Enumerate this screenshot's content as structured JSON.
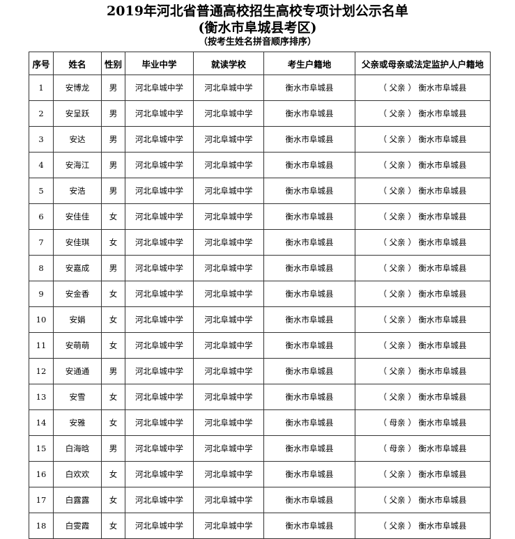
{
  "title": "2019年河北省普通高校招生高校专项计划公示名单",
  "subtitle": "(衡水市阜城县考区)",
  "note": "（按考生姓名拼音顺序排序）",
  "columns": [
    "序号",
    "姓名",
    "性别",
    "毕业中学",
    "就读学校",
    "考生户籍地",
    "父亲或母亲或法定监护人户籍地"
  ],
  "rows": [
    [
      "1",
      "安博龙",
      "男",
      "河北阜城中学",
      "河北阜城中学",
      "衡水市阜城县",
      "（ 父亲 ） 衡水市阜城县"
    ],
    [
      "2",
      "安呈跃",
      "男",
      "河北阜城中学",
      "河北阜城中学",
      "衡水市阜城县",
      "（ 父亲 ） 衡水市阜城县"
    ],
    [
      "3",
      "安达",
      "男",
      "河北阜城中学",
      "河北阜城中学",
      "衡水市阜城县",
      "（ 父亲 ） 衡水市阜城县"
    ],
    [
      "4",
      "安海江",
      "男",
      "河北阜城中学",
      "河北阜城中学",
      "衡水市阜城县",
      "（ 父亲 ） 衡水市阜城县"
    ],
    [
      "5",
      "安浩",
      "男",
      "河北阜城中学",
      "河北阜城中学",
      "衡水市阜城县",
      "（ 父亲 ） 衡水市阜城县"
    ],
    [
      "6",
      "安佳佳",
      "女",
      "河北阜城中学",
      "河北阜城中学",
      "衡水市阜城县",
      "（ 父亲 ） 衡水市阜城县"
    ],
    [
      "7",
      "安佳琪",
      "女",
      "河北阜城中学",
      "河北阜城中学",
      "衡水市阜城县",
      "（ 父亲 ） 衡水市阜城县"
    ],
    [
      "8",
      "安嘉成",
      "男",
      "河北阜城中学",
      "河北阜城中学",
      "衡水市阜城县",
      "（ 父亲 ） 衡水市阜城县"
    ],
    [
      "9",
      "安金香",
      "女",
      "河北阜城中学",
      "河北阜城中学",
      "衡水市阜城县",
      "（ 父亲 ） 衡水市阜城县"
    ],
    [
      "10",
      "安娟",
      "女",
      "河北阜城中学",
      "河北阜城中学",
      "衡水市阜城县",
      "（ 父亲 ） 衡水市阜城县"
    ],
    [
      "11",
      "安萌萌",
      "女",
      "河北阜城中学",
      "河北阜城中学",
      "衡水市阜城县",
      "（ 父亲 ） 衡水市阜城县"
    ],
    [
      "12",
      "安通通",
      "男",
      "河北阜城中学",
      "河北阜城中学",
      "衡水市阜城县",
      "（ 父亲 ） 衡水市阜城县"
    ],
    [
      "13",
      "安雪",
      "女",
      "河北阜城中学",
      "河北阜城中学",
      "衡水市阜城县",
      "（ 父亲 ） 衡水市阜城县"
    ],
    [
      "14",
      "安雅",
      "女",
      "河北阜城中学",
      "河北阜城中学",
      "衡水市阜城县",
      "（ 母亲 ） 衡水市阜城县"
    ],
    [
      "15",
      "白海晗",
      "男",
      "河北阜城中学",
      "河北阜城中学",
      "衡水市阜城县",
      "（ 母亲 ） 衡水市阜城县"
    ],
    [
      "16",
      "白欢欢",
      "女",
      "河北阜城中学",
      "河北阜城中学",
      "衡水市阜城县",
      "（ 父亲 ） 衡水市阜城县"
    ],
    [
      "17",
      "白露露",
      "女",
      "河北阜城中学",
      "河北阜城中学",
      "衡水市阜城县",
      "（ 父亲 ） 衡水市阜城县"
    ],
    [
      "18",
      "白雯霞",
      "女",
      "河北阜城中学",
      "河北阜城中学",
      "衡水市阜城县",
      "（ 父亲 ） 衡水市阜城县"
    ]
  ]
}
